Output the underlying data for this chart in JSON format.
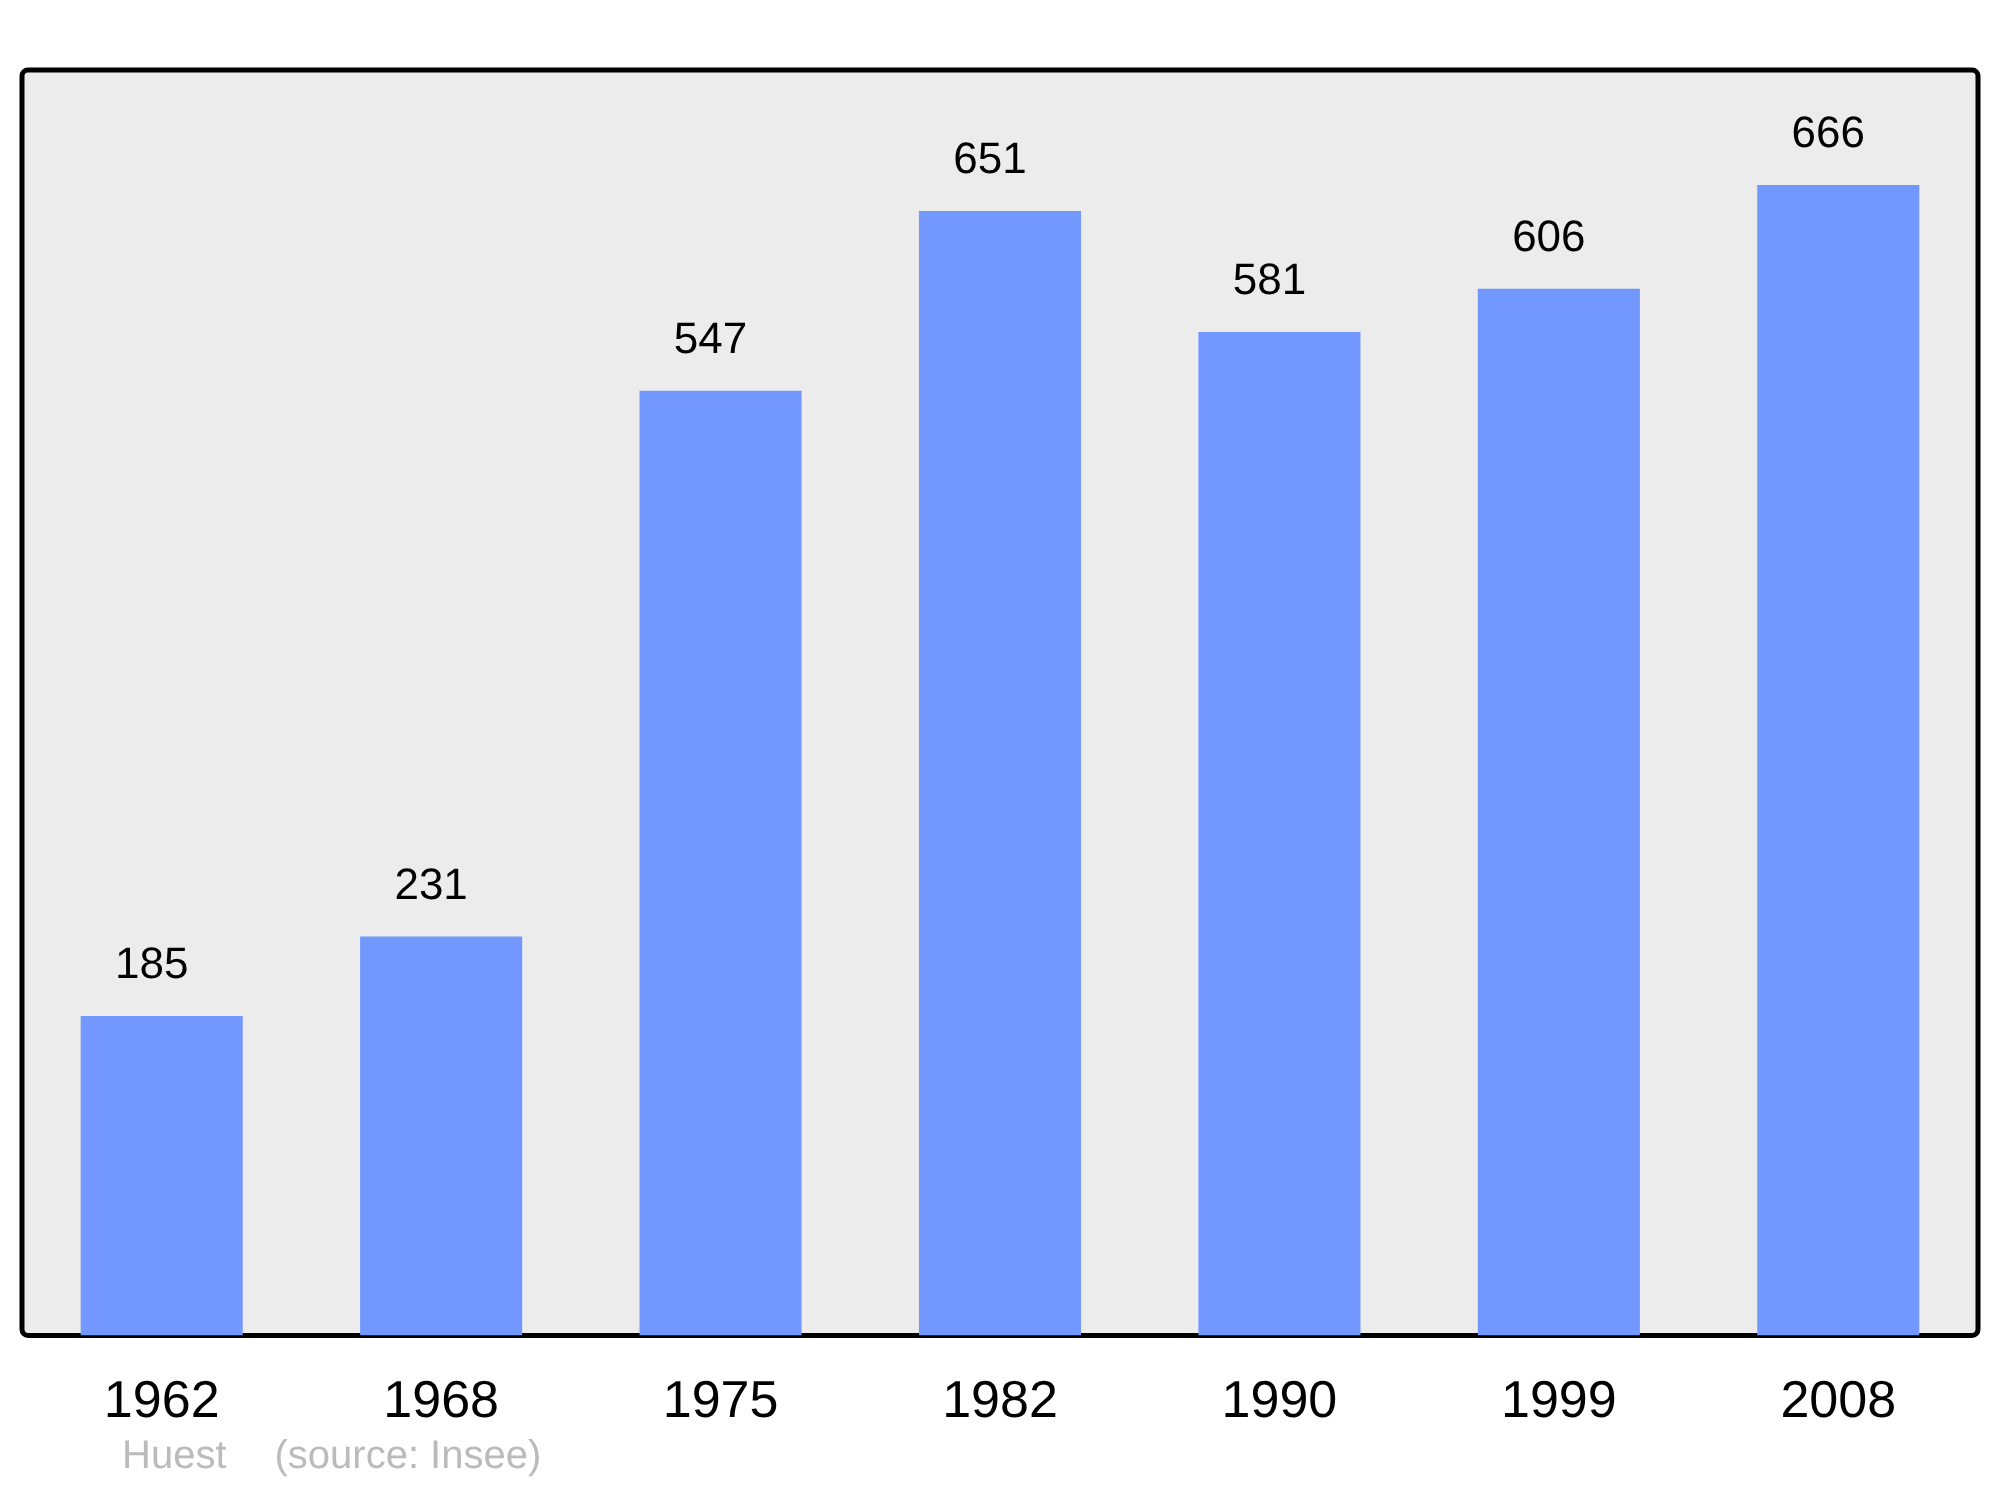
{
  "chart_data": {
    "type": "bar",
    "categories": [
      "1962",
      "1968",
      "1975",
      "1982",
      "1990",
      "1999",
      "2008"
    ],
    "values": [
      185,
      231,
      547,
      651,
      581,
      606,
      666
    ],
    "color": "#7298ff",
    "data_labels": true,
    "grid": false,
    "legend": false,
    "annotations": [
      "Huest",
      "(source: Insee)"
    ]
  }
}
